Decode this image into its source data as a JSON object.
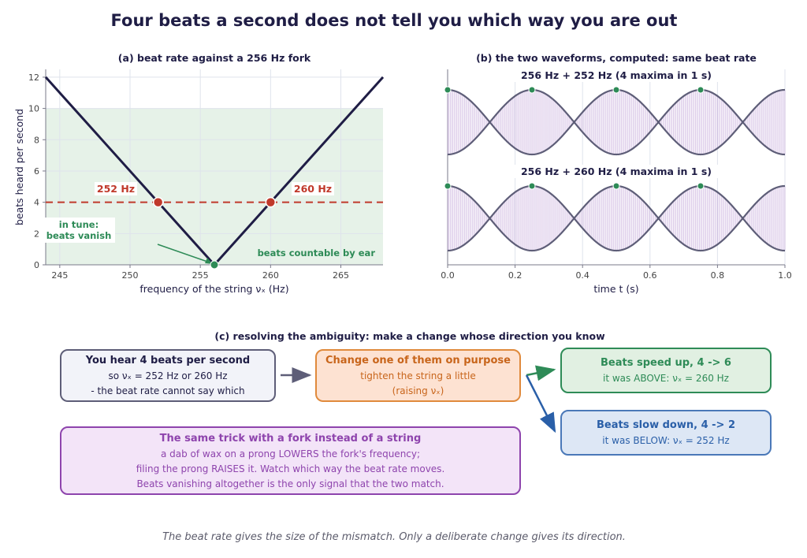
{
  "title": "Four beats a second does not tell you which way you are out",
  "panel_a": {
    "title": "(a)  beat rate against a 256 Hz fork",
    "xlabel": "frequency of the string νₓ (Hz)",
    "ylabel": "beats heard per second",
    "label_252": "252 Hz",
    "label_260": "260 Hz",
    "in_tune_line1": "in tune:",
    "in_tune_line2": "beats vanish",
    "countable": "beats countable by ear"
  },
  "panel_b": {
    "title": "(b)  the two waveforms, computed: same beat rate",
    "top_label": "256 Hz  +  252 Hz    (4 maxima in 1 s)",
    "bottom_label": "256 Hz  +  260 Hz    (4 maxima in 1 s)",
    "xlabel": "time t (s)"
  },
  "panel_c": {
    "title": "(c)  resolving the ambiguity: make a change whose direction you know",
    "hear": {
      "line1": "You hear 4 beats per second",
      "line2": "so νₓ = 252 Hz or 260 Hz",
      "line3": "- the beat rate cannot say which"
    },
    "change": {
      "line1": "Change one of them on purpose",
      "line2": "tighten the string a little",
      "line3": "(raising νₓ)"
    },
    "up": {
      "line1": "Beats speed up, 4 -> 6",
      "line2": "it was ABOVE: νₓ = 260 Hz"
    },
    "down": {
      "line1": "Beats slow down, 4 -> 2",
      "line2": "it was BELOW: νₓ = 252 Hz"
    },
    "fork": {
      "line1": "The same trick with a fork instead of a string",
      "line2": "a dab of wax on a prong LOWERS the fork's frequency;",
      "line3": "filing the prong RAISES it. Watch which way the beat rate moves.",
      "line4": "Beats vanishing altogether is the only signal that the two match."
    }
  },
  "footer": "The beat rate gives the size of the mismatch. Only a deliberate change gives its direction.",
  "chart_data": [
    {
      "type": "line",
      "title": "(a)  beat rate against a 256 Hz fork",
      "xlabel": "frequency of the string νₓ (Hz)",
      "ylabel": "beats heard per second",
      "xlim": [
        244,
        268
      ],
      "ylim": [
        0,
        12.5
      ],
      "xticks": [
        245,
        250,
        255,
        260,
        265
      ],
      "yticks": [
        0,
        2,
        4,
        6,
        8,
        10,
        12
      ],
      "series": [
        {
          "x": [
            244,
            256,
            268
          ],
          "y": [
            12,
            0,
            12
          ]
        }
      ],
      "shaded_region": {
        "y": [
          0,
          10
        ]
      },
      "reference_line": {
        "y": 4
      },
      "points": [
        {
          "x": 252,
          "y": 4
        },
        {
          "x": 260,
          "y": 4
        },
        {
          "x": 256,
          "y": 0
        }
      ],
      "grid": true
    },
    {
      "type": "line",
      "title": "(b)  the two waveforms, computed: same beat rate",
      "xlabel": "time t (s)",
      "xlim": [
        0,
        1
      ],
      "xticks": [
        0.0,
        0.2,
        0.4,
        0.6,
        0.8,
        1.0
      ],
      "series": [
        {
          "name": "256 Hz  +  252 Hz    (4 maxima in 1 s)",
          "f1": 256,
          "f2": 252,
          "beat_hz": 4,
          "maxima_t": [
            0,
            0.25,
            0.5,
            0.75
          ]
        },
        {
          "name": "256 Hz  +  260 Hz    (4 maxima in 1 s)",
          "f1": 256,
          "f2": 260,
          "beat_hz": 4,
          "maxima_t": [
            0,
            0.25,
            0.5,
            0.75
          ]
        }
      ],
      "grid": true
    }
  ],
  "colors": {
    "navy": "#1f1d45",
    "red": "#c0392b",
    "green": "#2e8b57",
    "shade": "#e6f2e8",
    "wave_fill": "#b48fd0",
    "envelope": "#5e5e78",
    "orange": "#c8651b",
    "blue": "#2a5fa8",
    "purple": "#8e44ad"
  }
}
